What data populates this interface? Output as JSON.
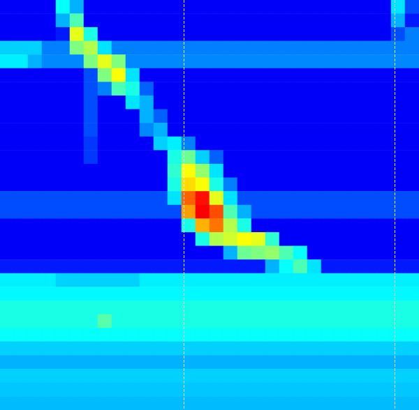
{
  "chart_data": {
    "type": "heatmap",
    "tick_labels": false,
    "grid": false,
    "zlim": [
      0,
      1
    ],
    "xlim": [
      0,
      30
    ],
    "ylim": [
      0,
      30
    ],
    "vlines": [
      13.15,
      28.25
    ],
    "cells": [
      [
        0.12,
        0.12,
        0.12,
        0.12,
        0.38,
        0.3,
        0.12,
        0.12,
        0.12,
        0.12,
        0.12,
        0.12,
        0.12,
        0.12,
        0.12,
        0.12,
        0.12,
        0.12,
        0.12,
        0.12,
        0.12,
        0.12,
        0.12,
        0.12,
        0.12,
        0.12,
        0.12,
        0.12,
        0.35,
        0.2
      ],
      [
        0.12,
        0.12,
        0.12,
        0.12,
        0.3,
        0.45,
        0.12,
        0.12,
        0.12,
        0.12,
        0.12,
        0.12,
        0.12,
        0.12,
        0.12,
        0.12,
        0.12,
        0.12,
        0.12,
        0.12,
        0.12,
        0.12,
        0.12,
        0.12,
        0.12,
        0.12,
        0.12,
        0.12,
        0.3,
        0.15
      ],
      [
        0.12,
        0.12,
        0.12,
        0.12,
        0.15,
        0.6,
        0.4,
        0.12,
        0.12,
        0.12,
        0.12,
        0.12,
        0.12,
        0.12,
        0.12,
        0.12,
        0.12,
        0.12,
        0.12,
        0.12,
        0.12,
        0.12,
        0.12,
        0.12,
        0.12,
        0.12,
        0.12,
        0.12,
        0.2,
        0.25
      ],
      [
        0.33,
        0.33,
        0.33,
        0.25,
        0.25,
        0.5,
        0.55,
        0.35,
        0.25,
        0.25,
        0.25,
        0.25,
        0.25,
        0.25,
        0.25,
        0.25,
        0.25,
        0.25,
        0.25,
        0.25,
        0.25,
        0.25,
        0.25,
        0.25,
        0.25,
        0.25,
        0.25,
        0.25,
        0.25,
        0.25
      ],
      [
        0.36,
        0.36,
        0.3,
        0.26,
        0.26,
        0.26,
        0.5,
        0.6,
        0.5,
        0.26,
        0.26,
        0.26,
        0.26,
        0.26,
        0.26,
        0.26,
        0.26,
        0.26,
        0.26,
        0.26,
        0.26,
        0.26,
        0.26,
        0.26,
        0.26,
        0.26,
        0.26,
        0.26,
        0.26,
        0.26
      ],
      [
        0.12,
        0.12,
        0.12,
        0.12,
        0.12,
        0.12,
        0.2,
        0.5,
        0.62,
        0.35,
        0.12,
        0.12,
        0.12,
        0.12,
        0.12,
        0.12,
        0.12,
        0.12,
        0.12,
        0.12,
        0.12,
        0.12,
        0.12,
        0.12,
        0.12,
        0.12,
        0.12,
        0.12,
        0.12,
        0.12
      ],
      [
        0.12,
        0.12,
        0.12,
        0.12,
        0.12,
        0.12,
        0.2,
        0.25,
        0.45,
        0.4,
        0.22,
        0.12,
        0.12,
        0.12,
        0.12,
        0.12,
        0.12,
        0.12,
        0.12,
        0.12,
        0.12,
        0.12,
        0.12,
        0.12,
        0.12,
        0.12,
        0.12,
        0.12,
        0.12,
        0.12
      ],
      [
        0.12,
        0.12,
        0.12,
        0.12,
        0.12,
        0.12,
        0.2,
        0.12,
        0.12,
        0.35,
        0.3,
        0.12,
        0.12,
        0.12,
        0.12,
        0.12,
        0.12,
        0.12,
        0.12,
        0.12,
        0.12,
        0.12,
        0.12,
        0.12,
        0.12,
        0.12,
        0.12,
        0.12,
        0.12,
        0.12
      ],
      [
        0.12,
        0.12,
        0.12,
        0.12,
        0.12,
        0.12,
        0.2,
        0.12,
        0.12,
        0.12,
        0.3,
        0.22,
        0.12,
        0.12,
        0.12,
        0.12,
        0.12,
        0.12,
        0.12,
        0.12,
        0.12,
        0.12,
        0.12,
        0.12,
        0.12,
        0.12,
        0.12,
        0.12,
        0.12,
        0.12
      ],
      [
        0.12,
        0.12,
        0.12,
        0.12,
        0.12,
        0.12,
        0.2,
        0.12,
        0.12,
        0.12,
        0.26,
        0.3,
        0.12,
        0.12,
        0.12,
        0.12,
        0.12,
        0.12,
        0.12,
        0.12,
        0.12,
        0.12,
        0.12,
        0.12,
        0.12,
        0.12,
        0.12,
        0.12,
        0.12,
        0.12
      ],
      [
        0.12,
        0.12,
        0.12,
        0.12,
        0.12,
        0.12,
        0.18,
        0.12,
        0.12,
        0.12,
        0.12,
        0.33,
        0.36,
        0.25,
        0.12,
        0.12,
        0.12,
        0.12,
        0.12,
        0.12,
        0.12,
        0.12,
        0.12,
        0.12,
        0.12,
        0.12,
        0.12,
        0.12,
        0.12,
        0.12
      ],
      [
        0.12,
        0.12,
        0.12,
        0.12,
        0.12,
        0.12,
        0.18,
        0.12,
        0.12,
        0.12,
        0.12,
        0.12,
        0.4,
        0.48,
        0.33,
        0.22,
        0.12,
        0.12,
        0.12,
        0.12,
        0.12,
        0.12,
        0.12,
        0.12,
        0.12,
        0.12,
        0.12,
        0.12,
        0.12,
        0.12
      ],
      [
        0.12,
        0.12,
        0.12,
        0.12,
        0.12,
        0.12,
        0.12,
        0.12,
        0.12,
        0.12,
        0.12,
        0.12,
        0.42,
        0.62,
        0.52,
        0.35,
        0.12,
        0.12,
        0.12,
        0.12,
        0.12,
        0.12,
        0.12,
        0.12,
        0.12,
        0.12,
        0.12,
        0.12,
        0.12,
        0.12
      ],
      [
        0.12,
        0.12,
        0.12,
        0.12,
        0.12,
        0.12,
        0.12,
        0.12,
        0.12,
        0.12,
        0.12,
        0.12,
        0.4,
        0.66,
        0.62,
        0.4,
        0.25,
        0.12,
        0.12,
        0.12,
        0.12,
        0.12,
        0.12,
        0.12,
        0.12,
        0.12,
        0.12,
        0.12,
        0.12,
        0.12
      ],
      [
        0.2,
        0.2,
        0.2,
        0.2,
        0.2,
        0.2,
        0.2,
        0.2,
        0.2,
        0.2,
        0.2,
        0.2,
        0.35,
        0.78,
        0.86,
        0.6,
        0.35,
        0.2,
        0.2,
        0.2,
        0.2,
        0.2,
        0.2,
        0.2,
        0.2,
        0.2,
        0.2,
        0.2,
        0.2,
        0.2
      ],
      [
        0.2,
        0.2,
        0.2,
        0.2,
        0.2,
        0.2,
        0.2,
        0.2,
        0.2,
        0.2,
        0.2,
        0.2,
        0.2,
        0.72,
        0.88,
        0.8,
        0.45,
        0.3,
        0.2,
        0.2,
        0.2,
        0.2,
        0.2,
        0.2,
        0.2,
        0.2,
        0.2,
        0.2,
        0.2,
        0.2
      ],
      [
        0.12,
        0.12,
        0.12,
        0.12,
        0.12,
        0.12,
        0.12,
        0.12,
        0.12,
        0.12,
        0.12,
        0.12,
        0.12,
        0.4,
        0.7,
        0.76,
        0.55,
        0.4,
        0.12,
        0.12,
        0.12,
        0.12,
        0.12,
        0.12,
        0.12,
        0.12,
        0.12,
        0.12,
        0.12,
        0.12
      ],
      [
        0.12,
        0.12,
        0.12,
        0.12,
        0.12,
        0.12,
        0.12,
        0.12,
        0.12,
        0.12,
        0.12,
        0.12,
        0.12,
        0.12,
        0.4,
        0.55,
        0.58,
        0.62,
        0.6,
        0.42,
        0.12,
        0.12,
        0.12,
        0.12,
        0.12,
        0.12,
        0.12,
        0.12,
        0.12,
        0.12
      ],
      [
        0.12,
        0.12,
        0.12,
        0.12,
        0.12,
        0.12,
        0.12,
        0.12,
        0.12,
        0.12,
        0.12,
        0.12,
        0.12,
        0.12,
        0.12,
        0.12,
        0.3,
        0.48,
        0.5,
        0.52,
        0.45,
        0.38,
        0.12,
        0.12,
        0.12,
        0.12,
        0.12,
        0.12,
        0.12,
        0.12
      ],
      [
        0.15,
        0.15,
        0.15,
        0.15,
        0.15,
        0.15,
        0.15,
        0.15,
        0.15,
        0.15,
        0.15,
        0.15,
        0.15,
        0.15,
        0.15,
        0.15,
        0.15,
        0.15,
        0.15,
        0.3,
        0.38,
        0.45,
        0.35,
        0.15,
        0.15,
        0.15,
        0.15,
        0.15,
        0.15,
        0.15
      ],
      [
        0.36,
        0.36,
        0.36,
        0.36,
        0.33,
        0.33,
        0.33,
        0.33,
        0.33,
        0.33,
        0.36,
        0.36,
        0.36,
        0.36,
        0.36,
        0.36,
        0.36,
        0.36,
        0.36,
        0.36,
        0.36,
        0.36,
        0.36,
        0.36,
        0.36,
        0.36,
        0.36,
        0.36,
        0.36,
        0.36
      ],
      [
        0.37,
        0.37,
        0.37,
        0.37,
        0.37,
        0.37,
        0.37,
        0.37,
        0.37,
        0.37,
        0.37,
        0.37,
        0.37,
        0.37,
        0.37,
        0.37,
        0.37,
        0.37,
        0.37,
        0.37,
        0.37,
        0.37,
        0.37,
        0.37,
        0.37,
        0.37,
        0.37,
        0.37,
        0.37,
        0.37
      ],
      [
        0.4,
        0.4,
        0.4,
        0.4,
        0.4,
        0.4,
        0.4,
        0.4,
        0.4,
        0.4,
        0.4,
        0.4,
        0.4,
        0.4,
        0.4,
        0.4,
        0.4,
        0.4,
        0.4,
        0.4,
        0.4,
        0.4,
        0.4,
        0.4,
        0.4,
        0.4,
        0.4,
        0.4,
        0.4,
        0.4
      ],
      [
        0.4,
        0.4,
        0.4,
        0.4,
        0.4,
        0.4,
        0.4,
        0.46,
        0.4,
        0.4,
        0.4,
        0.4,
        0.4,
        0.4,
        0.4,
        0.4,
        0.4,
        0.4,
        0.4,
        0.4,
        0.4,
        0.4,
        0.4,
        0.4,
        0.4,
        0.4,
        0.4,
        0.4,
        0.4,
        0.4
      ],
      [
        0.38,
        0.38,
        0.38,
        0.38,
        0.38,
        0.38,
        0.38,
        0.38,
        0.38,
        0.38,
        0.38,
        0.38,
        0.38,
        0.38,
        0.38,
        0.38,
        0.38,
        0.38,
        0.38,
        0.38,
        0.38,
        0.38,
        0.38,
        0.38,
        0.38,
        0.38,
        0.38,
        0.38,
        0.38,
        0.38
      ],
      [
        0.33,
        0.33,
        0.33,
        0.33,
        0.33,
        0.33,
        0.33,
        0.33,
        0.33,
        0.33,
        0.33,
        0.33,
        0.33,
        0.33,
        0.33,
        0.33,
        0.33,
        0.33,
        0.33,
        0.33,
        0.33,
        0.33,
        0.33,
        0.33,
        0.33,
        0.33,
        0.33,
        0.33,
        0.33,
        0.33
      ],
      [
        0.3,
        0.3,
        0.3,
        0.3,
        0.3,
        0.3,
        0.3,
        0.3,
        0.3,
        0.3,
        0.3,
        0.3,
        0.3,
        0.3,
        0.3,
        0.3,
        0.3,
        0.3,
        0.3,
        0.3,
        0.3,
        0.3,
        0.3,
        0.3,
        0.3,
        0.3,
        0.3,
        0.3,
        0.3,
        0.3
      ],
      [
        0.33,
        0.33,
        0.33,
        0.33,
        0.33,
        0.33,
        0.33,
        0.33,
        0.33,
        0.33,
        0.33,
        0.33,
        0.33,
        0.33,
        0.33,
        0.33,
        0.33,
        0.33,
        0.33,
        0.33,
        0.33,
        0.33,
        0.33,
        0.33,
        0.33,
        0.33,
        0.33,
        0.33,
        0.33,
        0.33
      ],
      [
        0.32,
        0.32,
        0.32,
        0.32,
        0.32,
        0.32,
        0.32,
        0.32,
        0.32,
        0.32,
        0.32,
        0.32,
        0.32,
        0.32,
        0.32,
        0.32,
        0.32,
        0.32,
        0.32,
        0.32,
        0.32,
        0.32,
        0.32,
        0.32,
        0.32,
        0.32,
        0.32,
        0.32,
        0.32,
        0.32
      ],
      [
        0.31,
        0.31,
        0.31,
        0.31,
        0.31,
        0.31,
        0.31,
        0.31,
        0.31,
        0.31,
        0.31,
        0.31,
        0.31,
        0.31,
        0.31,
        0.31,
        0.31,
        0.31,
        0.31,
        0.31,
        0.31,
        0.31,
        0.31,
        0.31,
        0.31,
        0.31,
        0.31,
        0.31,
        0.31,
        0.31
      ]
    ]
  }
}
